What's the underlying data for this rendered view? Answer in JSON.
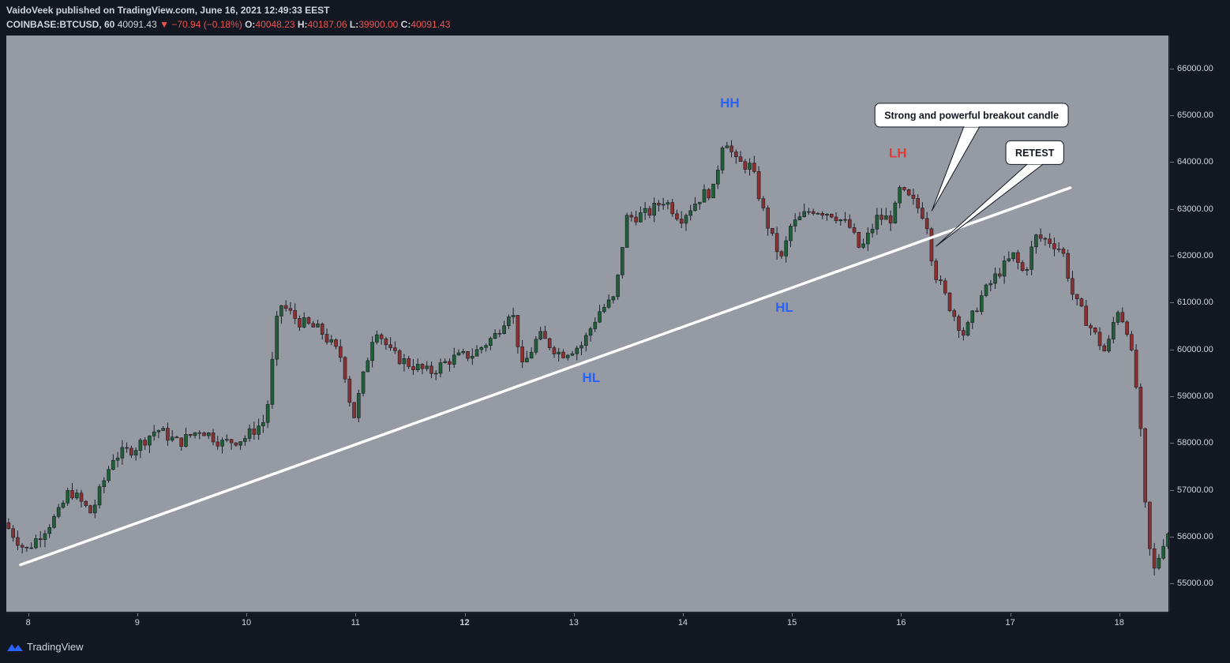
{
  "header": {
    "publisher_line": "VaidoVeek published on TradingView.com, June 16, 2021 12:49:33 EEST",
    "symbol": "COINBASE:BTCUSD, 60",
    "last": "40091.43",
    "change": "−70.94 (−0.18%)",
    "o_label": "O:",
    "o_value": "40048.23",
    "h_label": "H:",
    "h_value": "40187.06",
    "l_label": "L:",
    "l_value": "39900.00",
    "c_label": "C:",
    "c_value": "40091.43"
  },
  "footer": {
    "brand": "TradingView"
  },
  "colors": {
    "up": "#1f5e37",
    "down": "#8b2f2f",
    "plot_bg": "#959aa3",
    "trendline": "#ffffff",
    "label_blue": "#2962ff",
    "label_red": "#e53935"
  },
  "chart_data": {
    "type": "candlestick",
    "y_range": [
      54400,
      66700
    ],
    "y_ticks": [
      55000,
      56000,
      57000,
      58000,
      59000,
      60000,
      61000,
      62000,
      63000,
      64000,
      65000,
      66000
    ],
    "y_tick_labels": [
      "55000.00",
      "56000.00",
      "57000.00",
      "58000.00",
      "59000.00",
      "60000.00",
      "61000.00",
      "62000.00",
      "63000.00",
      "64000.00",
      "65000.00",
      "66000.00"
    ],
    "x_range_days": [
      7.8,
      18.45
    ],
    "x_ticks": [
      8,
      9,
      10,
      11,
      12,
      13,
      14,
      15,
      16,
      17,
      18
    ],
    "x_tick_labels": [
      "8",
      "9",
      "10",
      "11",
      "12",
      "13",
      "14",
      "15",
      "16",
      "17",
      "18"
    ],
    "x_bold_tick": "12",
    "waypoints": [
      [
        7.8,
        56300
      ],
      [
        8.0,
        55700
      ],
      [
        8.3,
        56500
      ],
      [
        8.4,
        57000
      ],
      [
        8.6,
        56500
      ],
      [
        8.8,
        57700
      ],
      [
        9.0,
        57900
      ],
      [
        9.2,
        58300
      ],
      [
        9.4,
        58000
      ],
      [
        9.6,
        58300
      ],
      [
        9.8,
        58000
      ],
      [
        10.0,
        58100
      ],
      [
        10.2,
        58500
      ],
      [
        10.32,
        61000
      ],
      [
        10.5,
        60600
      ],
      [
        10.7,
        60400
      ],
      [
        10.9,
        59800
      ],
      [
        11.0,
        58500
      ],
      [
        11.1,
        59500
      ],
      [
        11.2,
        60500
      ],
      [
        11.35,
        59900
      ],
      [
        11.5,
        59700
      ],
      [
        11.7,
        59500
      ],
      [
        11.9,
        59800
      ],
      [
        12.1,
        59900
      ],
      [
        12.3,
        60300
      ],
      [
        12.45,
        60900
      ],
      [
        12.55,
        59600
      ],
      [
        12.7,
        60300
      ],
      [
        12.9,
        59900
      ],
      [
        13.1,
        60100
      ],
      [
        13.25,
        60800
      ],
      [
        13.4,
        61100
      ],
      [
        13.5,
        62800
      ],
      [
        13.7,
        62900
      ],
      [
        13.85,
        63200
      ],
      [
        14.0,
        62800
      ],
      [
        14.2,
        63300
      ],
      [
        14.3,
        63400
      ],
      [
        14.4,
        64600
      ],
      [
        14.5,
        64000
      ],
      [
        14.65,
        63900
      ],
      [
        14.75,
        63000
      ],
      [
        14.85,
        62300
      ],
      [
        14.93,
        61900
      ],
      [
        15.0,
        62600
      ],
      [
        15.2,
        63000
      ],
      [
        15.4,
        62900
      ],
      [
        15.55,
        62600
      ],
      [
        15.65,
        62100
      ],
      [
        15.8,
        62800
      ],
      [
        15.95,
        62800
      ],
      [
        16.0,
        63400
      ],
      [
        16.15,
        63100
      ],
      [
        16.25,
        62800
      ],
      [
        16.32,
        61700
      ],
      [
        16.45,
        61000
      ],
      [
        16.6,
        60300
      ],
      [
        16.75,
        61100
      ],
      [
        16.9,
        61600
      ],
      [
        17.05,
        62000
      ],
      [
        17.15,
        61600
      ],
      [
        17.25,
        62400
      ],
      [
        17.4,
        62300
      ],
      [
        17.5,
        62100
      ],
      [
        17.6,
        61100
      ],
      [
        17.75,
        60500
      ],
      [
        17.9,
        59900
      ],
      [
        18.0,
        60900
      ],
      [
        18.1,
        60400
      ],
      [
        18.2,
        58800
      ],
      [
        18.27,
        56200
      ],
      [
        18.33,
        55200
      ],
      [
        18.4,
        55700
      ],
      [
        18.45,
        56100
      ]
    ],
    "trendline": {
      "from": [
        7.93,
        55400
      ],
      "to": [
        17.55,
        63450
      ]
    },
    "annotations": [
      {
        "text": "HH",
        "x": 14.43,
        "y": 65170,
        "color": "blue"
      },
      {
        "text": "HL",
        "x": 14.93,
        "y": 60800,
        "color": "blue"
      },
      {
        "text": "HL",
        "x": 13.16,
        "y": 59300,
        "color": "blue"
      },
      {
        "text": "LH",
        "x": 15.97,
        "y": 64100,
        "color": "red"
      }
    ],
    "callouts": [
      {
        "text": "Strong and powerful breakout candle",
        "box_x": 15.76,
        "box_y": 65000,
        "tip_x": 16.28,
        "tip_y": 62950
      },
      {
        "text": "RETEST",
        "box_x": 16.96,
        "box_y": 64200,
        "tip_x": 16.32,
        "tip_y": 62200
      }
    ]
  }
}
